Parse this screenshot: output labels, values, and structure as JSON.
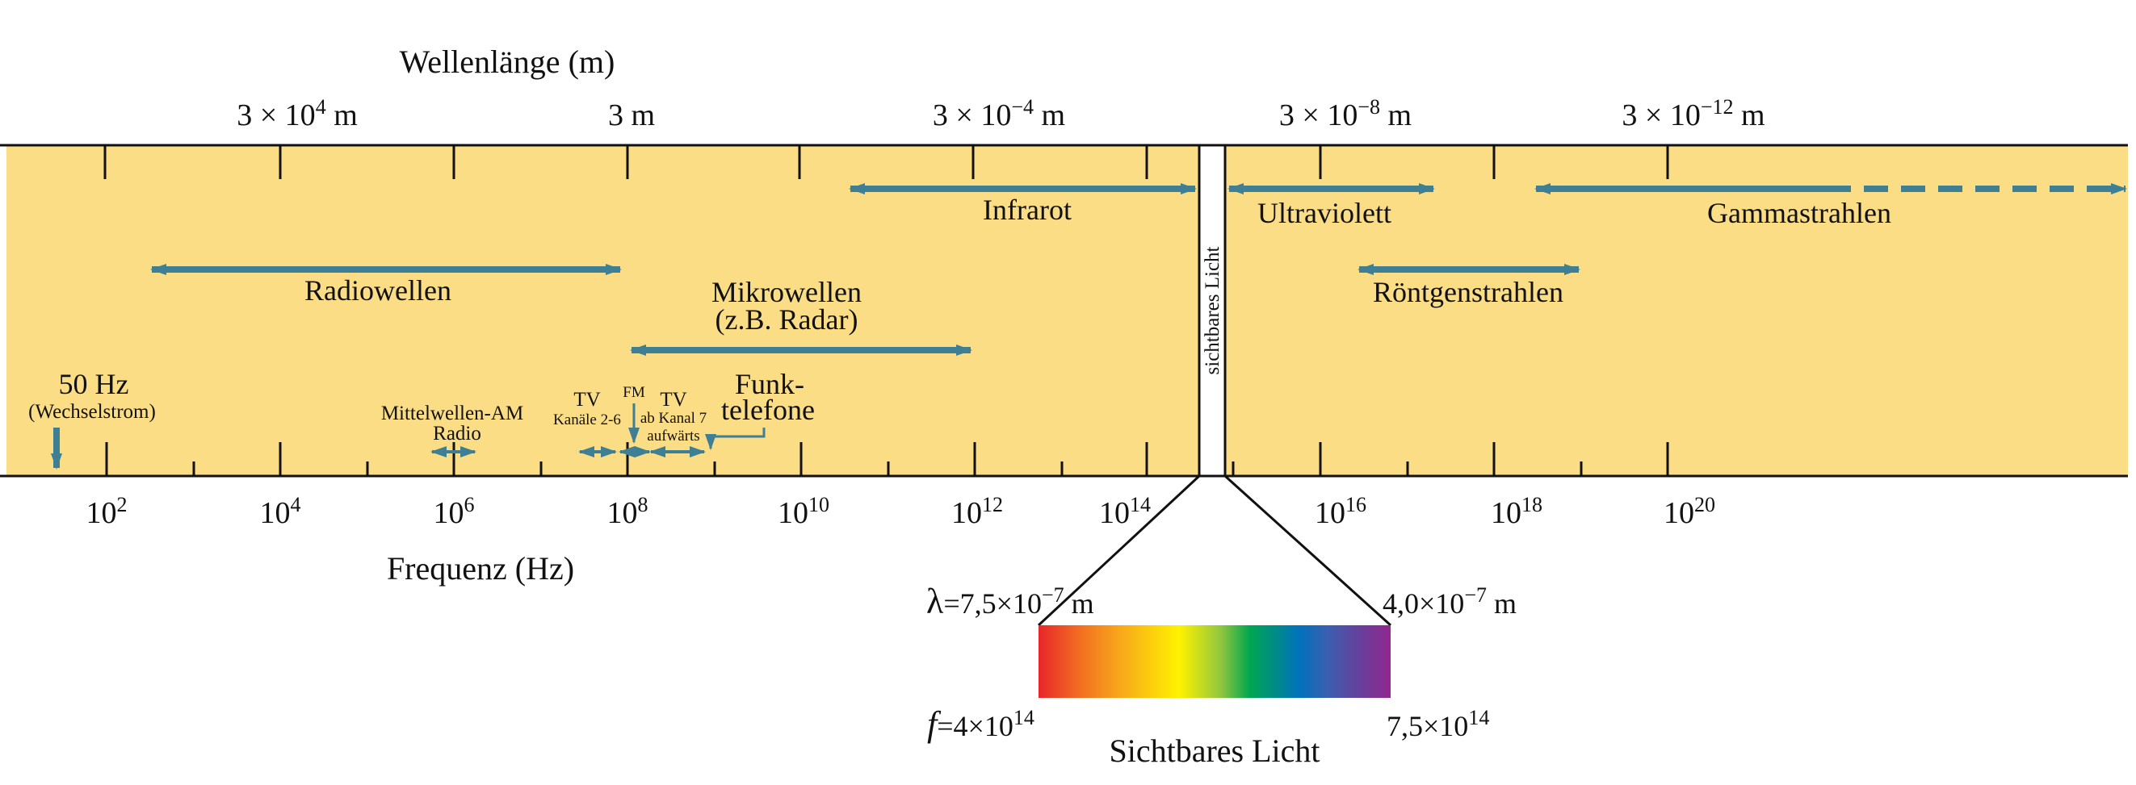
{
  "top_axis": {
    "title": "Wellenlänge (m)",
    "labels": [
      {
        "base": "3 × 10",
        "exp": "4",
        "unit": " m"
      },
      {
        "base": "3 m",
        "exp": "",
        "unit": ""
      },
      {
        "base": "3 × 10",
        "exp": "−4",
        "unit": " m"
      },
      {
        "base": "3 × 10",
        "exp": "−8",
        "unit": " m"
      },
      {
        "base": "3 × 10",
        "exp": "−12",
        "unit": " m"
      }
    ]
  },
  "bottom_axis": {
    "title": "Frequenz (Hz)",
    "labels": [
      {
        "base": "10",
        "exp": "2"
      },
      {
        "base": "10",
        "exp": "4"
      },
      {
        "base": "10",
        "exp": "6"
      },
      {
        "base": "10",
        "exp": "8"
      },
      {
        "base": "10",
        "exp": "10"
      },
      {
        "base": "10",
        "exp": "12"
      },
      {
        "base": "10",
        "exp": "14"
      },
      {
        "base": "10",
        "exp": "16"
      },
      {
        "base": "10",
        "exp": "18"
      },
      {
        "base": "10",
        "exp": "20"
      }
    ]
  },
  "bands": {
    "infrarot": "Infrarot",
    "ultraviolett": "Ultraviolett",
    "gamma": "Gammastrahlen",
    "radio": "Radiowellen",
    "mikro_1": "Mikrowellen",
    "mikro_2": "(z.B. Radar)",
    "roentgen": "Röntgenstrahlen",
    "sichtbar_vertical": "sichtbares Licht"
  },
  "annotations": {
    "hz50_1": "50 Hz",
    "hz50_2": "(Wechselstrom)",
    "am_1": "Mittelwellen-AM",
    "am_2": "Radio",
    "tv1_1": "TV",
    "tv1_2": "Kanäle 2-6",
    "fm": "FM",
    "tv2_1": "TV",
    "tv2_2": "ab Kanal 7",
    "tv2_3": "aufwärts",
    "funk_1": "Funk-",
    "funk_2": "telefone"
  },
  "visible": {
    "lambda_symbol": "λ",
    "lambda_left": "=7,5×10",
    "lambda_left_exp": "−7",
    "lambda_left_unit": " m",
    "lambda_right": "4,0×10",
    "lambda_right_exp": "−7",
    "lambda_right_unit": " m",
    "f_symbol": "f",
    "f_left": "=4×10",
    "f_left_exp": "14",
    "f_right": "7,5×10",
    "f_right_exp": "14",
    "title": "Sichtbares Licht",
    "spectrum_colors": [
      "#e8262a",
      "#f26a22",
      "#f7a21c",
      "#fff200",
      "#8dc63f",
      "#00a651",
      "#0072bc",
      "#3a5fb0",
      "#6a3d9a",
      "#92278f"
    ]
  },
  "colors": {
    "band_fill": "#fbdd86",
    "arrow": "#3e7f94",
    "line": "#111111"
  }
}
